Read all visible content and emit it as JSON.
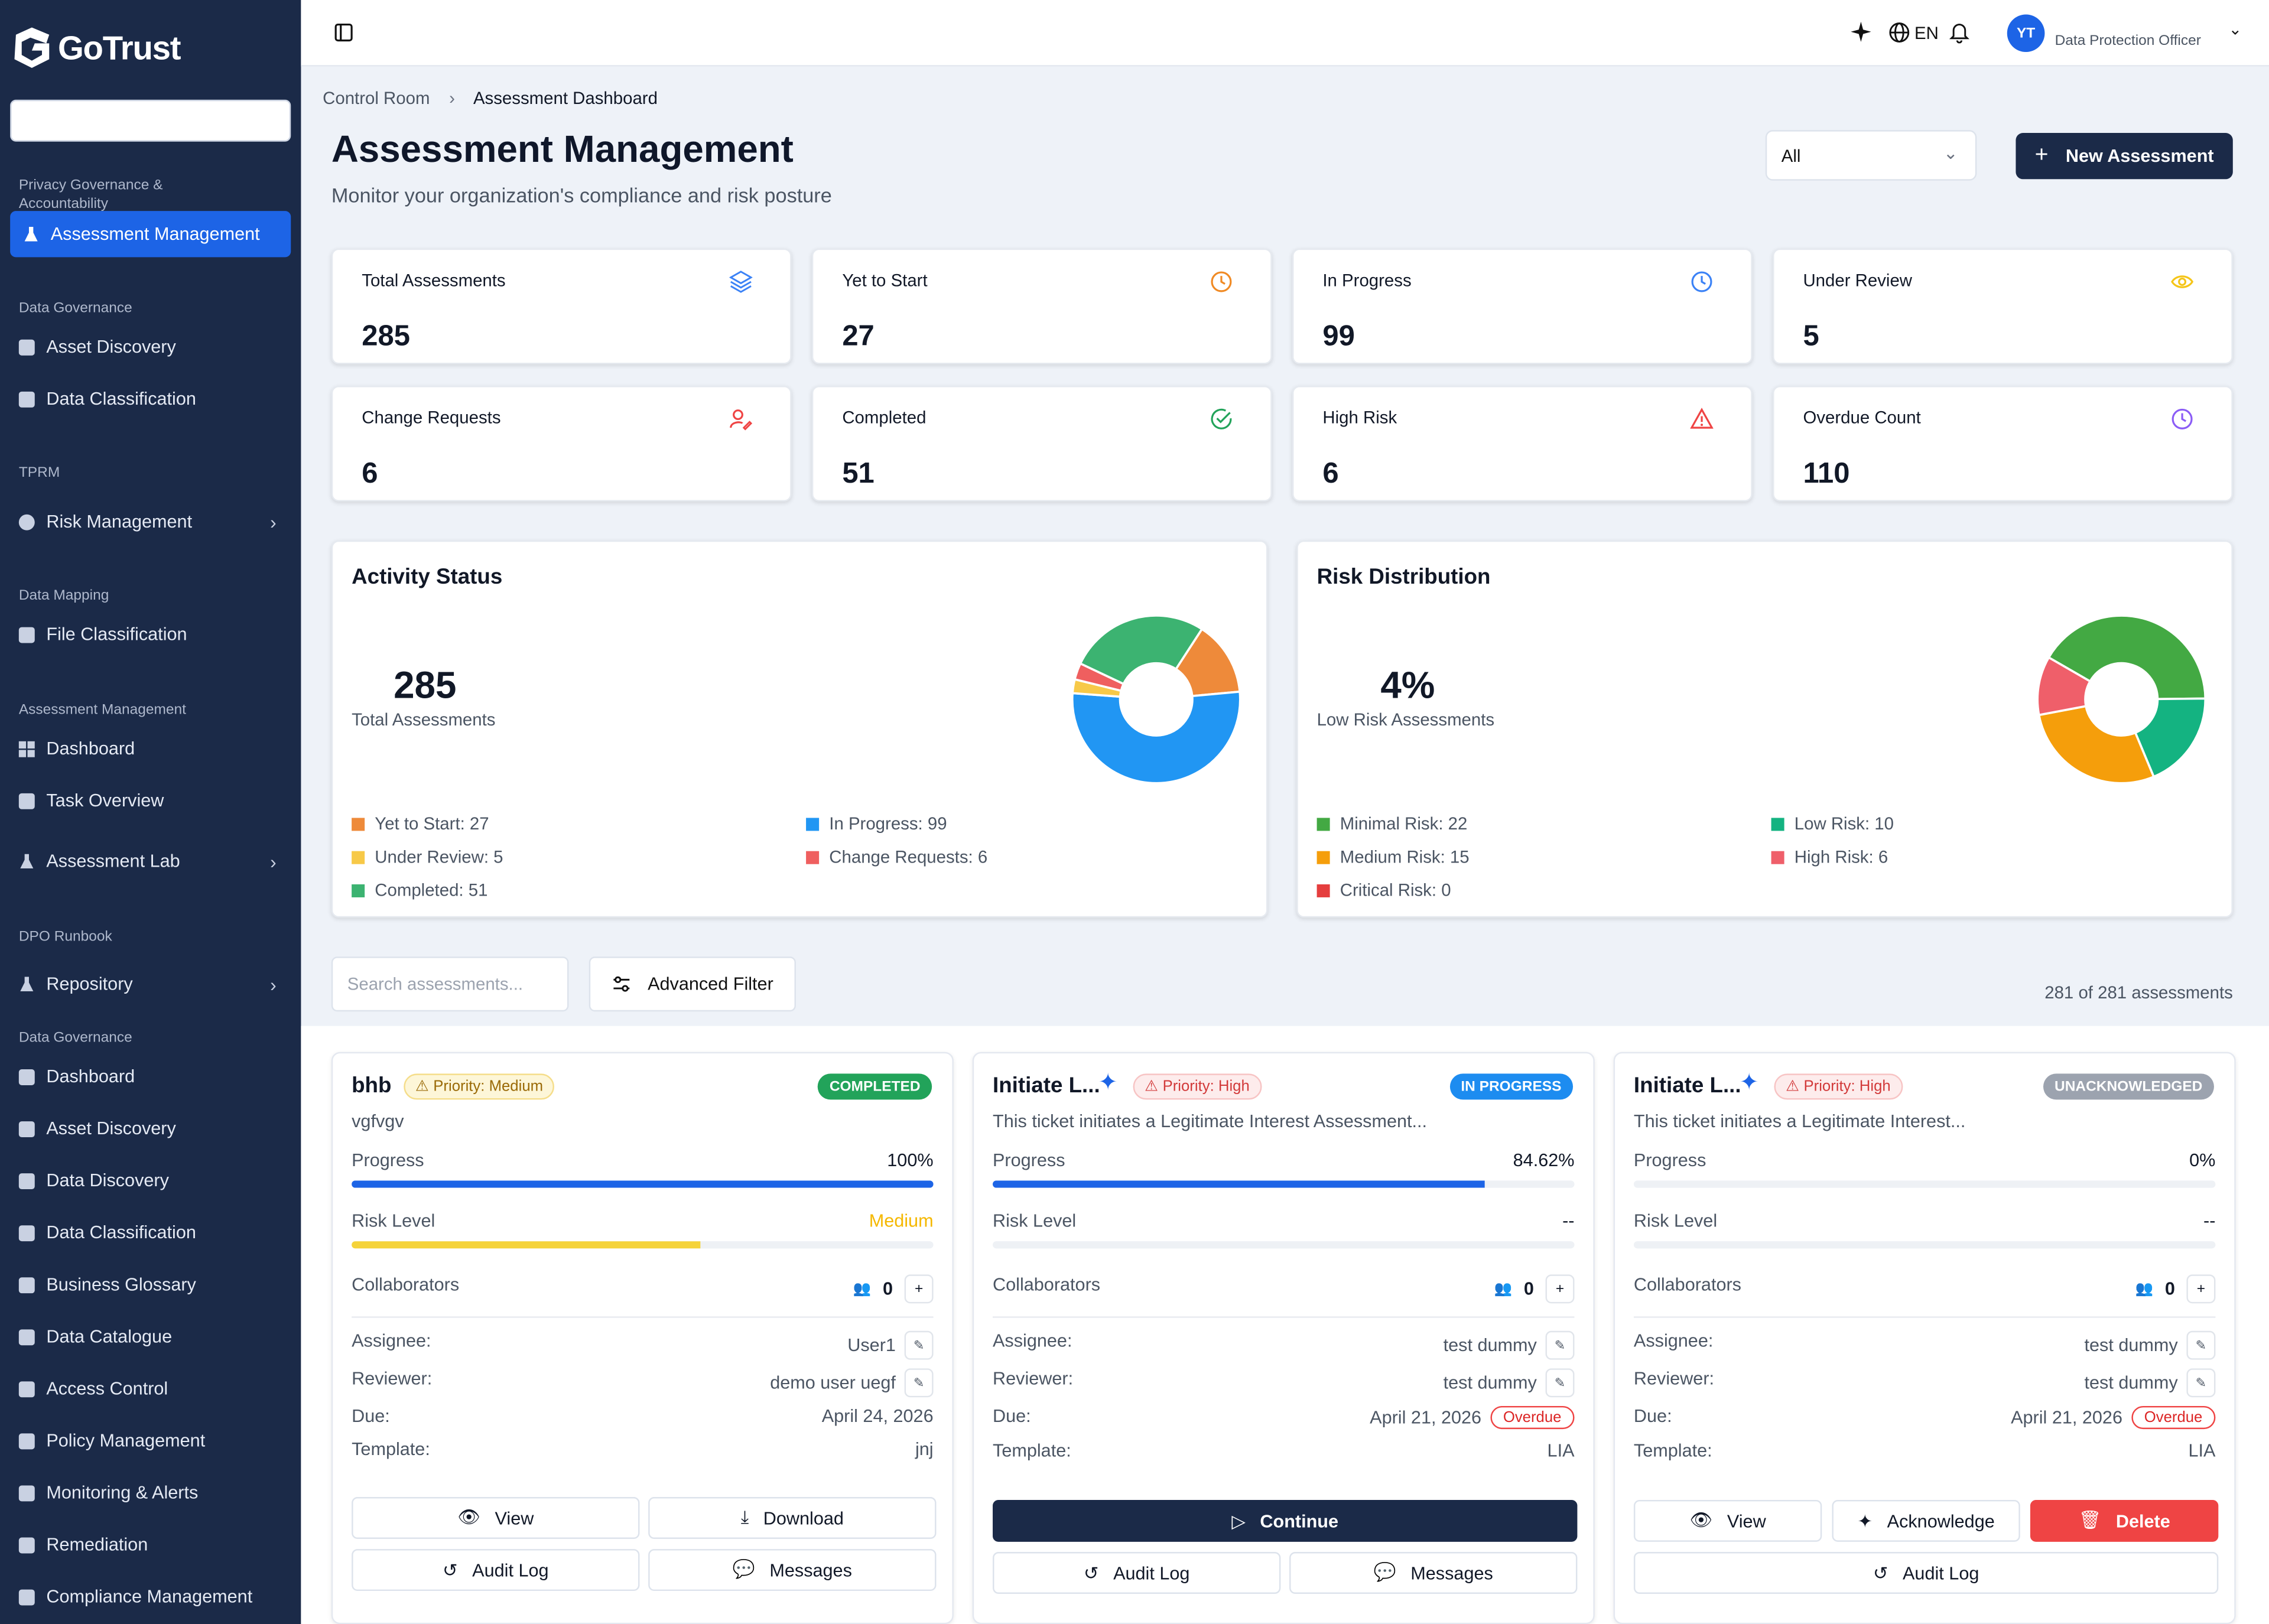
{
  "brand": {
    "name": "GoTrust"
  },
  "sidebar": {
    "sections": [
      {
        "title": "Privacy Governance & Accountability"
      },
      {
        "title": "Data Governance"
      },
      {
        "title": "TPRM"
      },
      {
        "title": "Data Mapping"
      },
      {
        "title": "Assessment Management"
      },
      {
        "title": "DPO Runbook"
      },
      {
        "title": "Data Governance"
      }
    ],
    "items": [
      {
        "label": "Assessment Management"
      },
      {
        "label": "Asset Discovery"
      },
      {
        "label": "Data Classification"
      },
      {
        "label": "Risk Management"
      },
      {
        "label": "File Classification"
      },
      {
        "label": "Dashboard"
      },
      {
        "label": "Task Overview"
      },
      {
        "label": "Assessment Lab"
      },
      {
        "label": "Repository"
      },
      {
        "label": "Dashboard"
      },
      {
        "label": "Asset Discovery"
      },
      {
        "label": "Data Discovery"
      },
      {
        "label": "Data Classification"
      },
      {
        "label": "Business Glossary"
      },
      {
        "label": "Data Catalogue"
      },
      {
        "label": "Access Control"
      },
      {
        "label": "Policy Management"
      },
      {
        "label": "Monitoring & Alerts"
      },
      {
        "label": "Remediation"
      },
      {
        "label": "Compliance Management"
      }
    ]
  },
  "topbar": {
    "lang": "EN",
    "avatar": "YT",
    "role": "Data Protection Officer"
  },
  "breadcrumb": {
    "parent": "Control Room",
    "current": "Assessment Dashboard"
  },
  "page": {
    "title": "Assessment Management",
    "subtitle": "Monitor your organization's compliance and risk posture",
    "filter_value": "All",
    "new_button": "New Assessment"
  },
  "stats": [
    {
      "label": "Total Assessments",
      "value": "285",
      "icon": "layers-icon",
      "color": "#3b82f6"
    },
    {
      "label": "Yet to Start",
      "value": "27",
      "icon": "clock-icon",
      "color": "#f08a24"
    },
    {
      "label": "In Progress",
      "value": "99",
      "icon": "clock-icon",
      "color": "#3b82f6"
    },
    {
      "label": "Under Review",
      "value": "5",
      "icon": "eye-icon",
      "color": "#f5c518"
    },
    {
      "label": "Change Requests",
      "value": "6",
      "icon": "user-edit-icon",
      "color": "#ef4444"
    },
    {
      "label": "Completed",
      "value": "51",
      "icon": "check-circle-icon",
      "color": "#22a35a"
    },
    {
      "label": "High Risk",
      "value": "6",
      "icon": "warning-icon",
      "color": "#ef4444"
    },
    {
      "label": "Overdue Count",
      "value": "110",
      "icon": "clock-icon",
      "color": "#8b5cf6"
    }
  ],
  "activity": {
    "title": "Activity Status",
    "total": "285",
    "total_label": "Total Assessments",
    "legend": [
      {
        "label": "Yet to Start: 27",
        "color": "#ee8a3a"
      },
      {
        "label": "In Progress: 99",
        "color": "#2196f3"
      },
      {
        "label": "Under Review: 5",
        "color": "#f7c948"
      },
      {
        "label": "Change Requests: 6",
        "color": "#ef5f5f"
      },
      {
        "label": "Completed: 51",
        "color": "#3cb371"
      }
    ],
    "chart_data": {
      "type": "pie",
      "categories": [
        "Yet to Start",
        "In Progress",
        "Under Review",
        "Change Requests",
        "Completed"
      ],
      "values": [
        27,
        99,
        5,
        6,
        51
      ]
    }
  },
  "risk": {
    "title": "Risk Distribution",
    "total": "4%",
    "total_label": "Low Risk Assessments",
    "legend": [
      {
        "label": "Minimal Risk: 22",
        "color": "#43a943"
      },
      {
        "label": "Low Risk: 10",
        "color": "#14b381"
      },
      {
        "label": "Medium Risk: 15",
        "color": "#f59e0b"
      },
      {
        "label": "High Risk: 6",
        "color": "#ef5f6a"
      },
      {
        "label": "Critical Risk: 0",
        "color": "#e53e3e"
      }
    ],
    "chart_data": {
      "type": "pie",
      "categories": [
        "Minimal Risk",
        "Low Risk",
        "Medium Risk",
        "High Risk",
        "Critical Risk"
      ],
      "values": [
        22,
        10,
        15,
        6,
        0
      ]
    }
  },
  "list": {
    "search_placeholder": "Search assessments...",
    "filter_button": "Advanced Filter",
    "count": "281 of 281 assessments"
  },
  "cards": [
    {
      "title": "bhb",
      "priority": "Priority: Medium",
      "status": "COMPLETED",
      "status_color": "#22a35a",
      "desc": "vgfvgv",
      "progress_label": "Progress",
      "progress": "100%",
      "progress_value": 1.0,
      "risk_label": "Risk Level",
      "risk": "Medium",
      "risk_value": 0.6,
      "collab_label": "Collaborators",
      "collab": "0",
      "assignee_label": "Assignee:",
      "assignee": "User1",
      "reviewer_label": "Reviewer:",
      "reviewer": "demo user uegf",
      "due_label": "Due:",
      "due": "April 24, 2026",
      "template_label": "Template:",
      "template": "jnj",
      "buttons": [
        "View",
        "Download",
        "Audit Log",
        "Messages"
      ]
    },
    {
      "title": "Initiate L...",
      "priority": "Priority: High",
      "status": "IN PROGRESS",
      "status_color": "#1d8cf0",
      "desc": "This ticket initiates a Legitimate Interest Assessment...",
      "progress_label": "Progress",
      "progress": "84.62%",
      "progress_value": 0.8462,
      "risk_label": "Risk Level",
      "risk": "--",
      "collab_label": "Collaborators",
      "collab": "0",
      "assignee_label": "Assignee:",
      "assignee": "test dummy",
      "reviewer_label": "Reviewer:",
      "reviewer": "test dummy",
      "due_label": "Due:",
      "due": "April 21, 2026",
      "overdue": "Overdue",
      "template_label": "Template:",
      "template": "LIA",
      "buttons": [
        "Continue",
        "Audit Log",
        "Messages"
      ]
    },
    {
      "title": "Initiate L...",
      "priority": "Priority: High",
      "status": "UNACKNOWLEDGED",
      "status_color": "#9ca3af",
      "desc": "This ticket initiates a Legitimate Interest...",
      "progress_label": "Progress",
      "progress": "0%",
      "progress_value": 0,
      "risk_label": "Risk Level",
      "risk": "--",
      "collab_label": "Collaborators",
      "collab": "0",
      "assignee_label": "Assignee:",
      "assignee": "test dummy",
      "reviewer_label": "Reviewer:",
      "reviewer": "test dummy",
      "due_label": "Due:",
      "due": "April 21, 2026",
      "overdue": "Overdue",
      "template_label": "Template:",
      "template": "LIA",
      "buttons": [
        "View",
        "Acknowledge",
        "Delete",
        "Audit Log"
      ]
    }
  ]
}
